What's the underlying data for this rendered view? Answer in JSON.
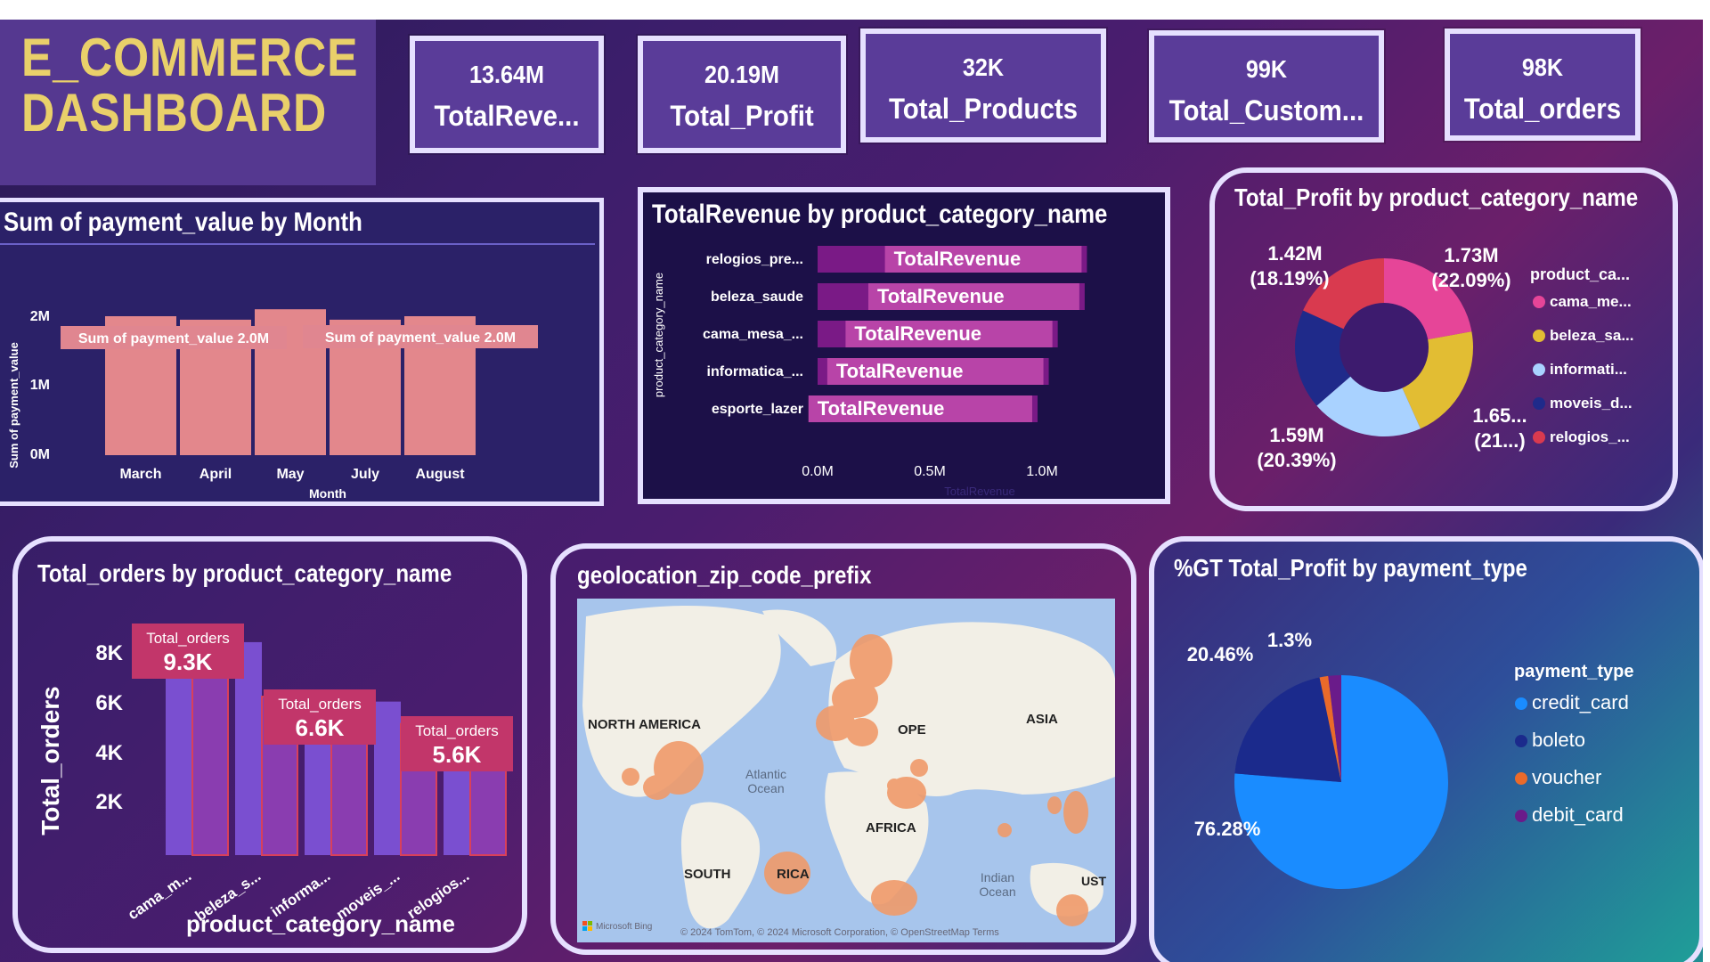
{
  "header": {
    "title_line1": "E_COMMERCE",
    "title_line2": "DASHBOARD"
  },
  "kpis": [
    {
      "value": "13.64M",
      "label": "TotalReve..."
    },
    {
      "value": "20.19M",
      "label": "Total_Profit"
    },
    {
      "value": "32K",
      "label": "Total_Products"
    },
    {
      "value": "99K",
      "label": "Total_Custom..."
    },
    {
      "value": "98K",
      "label": "Total_orders"
    }
  ],
  "payment_chart": {
    "title": "Sum of payment_value by Month",
    "ylabel": "Sum of payment_value",
    "xlabel": "Month",
    "yticks": [
      "0M",
      "1M",
      "2M"
    ],
    "annotation_left": "Sum of payment_value 2.0M",
    "annotation_right": "Sum of payment_value 2.0M"
  },
  "revenue_chart": {
    "title": "TotalRevenue by product_category_name",
    "ylabel": "product_category_name",
    "xlabel": "TotalRevenue",
    "bar_label": "TotalRevenue",
    "xticks": [
      "0.0M",
      "0.5M",
      "1.0M"
    ]
  },
  "profit_donut": {
    "title": "Total_Profit by product_category_name",
    "legend_title": "product_ca...",
    "legend_items": [
      "cama_me...",
      "beleza_sa...",
      "informati...",
      "moveis_d...",
      "relogios_..."
    ],
    "labels": {
      "a_value": "1.42M",
      "a_pct": "(18.19%)",
      "b_value": "1.73M",
      "b_pct": "(22.09%)",
      "c_value": "1.65...",
      "c_pct": "(21...)",
      "d_value": "1.59M",
      "d_pct": "(20.39%)"
    }
  },
  "orders_chart": {
    "title": "Total_orders by product_category_name",
    "ylabel": "Total_orders",
    "xlabel": "product_category_name",
    "yticks": [
      "2K",
      "4K",
      "6K",
      "8K"
    ],
    "xticks": [
      "cama_m...",
      "beleza_s...",
      "informa...",
      "moveis_...",
      "relogios..."
    ],
    "callout_label": "Total_orders",
    "callouts": [
      "9.3K",
      "6.6K",
      "5.6K"
    ]
  },
  "map": {
    "title": "geolocation_zip_code_prefix",
    "labels": {
      "north_america": "NORTH AMERICA",
      "europe": "OPE",
      "asia": "ASIA",
      "africa": "AFRICA",
      "south_america_left": "SOUTH",
      "south_america_right": "RICA",
      "atlantic_1": "Atlantic",
      "atlantic_2": "Ocean",
      "indian_1": "Indian",
      "indian_2": "Ocean",
      "australia": "UST"
    },
    "brand": "Microsoft Bing",
    "attribution": "© 2024 TomTom, © 2024 Microsoft Corporation, © OpenStreetMap  Terms"
  },
  "payment_pie": {
    "title": "%GT Total_Profit by payment_type",
    "legend_title": "payment_type",
    "legend_items": [
      "credit_card",
      "boleto",
      "voucher",
      "debit_card"
    ],
    "labels": {
      "credit": "76.28%",
      "boleto": "20.46%",
      "voucher": "1.3%"
    }
  },
  "colors": {
    "title_yellow": "#e9d06a",
    "bar_salmon": "#e3878c",
    "bar_magenta": "#b844a8",
    "donut_pink": "#e64598",
    "donut_yellow": "#e2bd33",
    "donut_lightblue": "#a9d2ff",
    "donut_navy": "#1f2a8a",
    "donut_red": "#d93a4f",
    "pie_blue": "#1a8cff",
    "pie_navy": "#1b2a8c",
    "pie_orange": "#ea6a2a",
    "pie_purple": "#6a1b8a"
  },
  "chart_data": [
    {
      "type": "bar",
      "title": "Sum of payment_value by Month",
      "xlabel": "Month",
      "ylabel": "Sum of payment_value",
      "categories": [
        "March",
        "April",
        "May",
        "July",
        "August"
      ],
      "values": [
        2.0,
        1.95,
        2.1,
        1.95,
        2.0
      ],
      "unit": "M",
      "ylim": [
        0,
        2.4
      ]
    },
    {
      "type": "bar",
      "orientation": "horizontal",
      "title": "TotalRevenue by product_category_name",
      "xlabel": "TotalRevenue",
      "ylabel": "product_category_name",
      "categories": [
        "relogios_pre...",
        "beleza_saude",
        "cama_mesa_...",
        "informatica_...",
        "esporte_lazer"
      ],
      "values": [
        1.2,
        1.19,
        1.07,
        1.03,
        0.98
      ],
      "unit": "M",
      "xlim": [
        0,
        1.2
      ]
    },
    {
      "type": "pie",
      "donut": true,
      "title": "Total_Profit by product_category_name",
      "legend_title": "product_ca...",
      "categories": [
        "cama_me...",
        "beleza_sa...",
        "informati...",
        "moveis_d...",
        "relogios_..."
      ],
      "values": [
        1.73,
        1.65,
        1.59,
        1.42,
        1.42
      ],
      "unit": "M"
    },
    {
      "type": "bar",
      "title": "Total_orders by product_category_name",
      "xlabel": "product_category_name",
      "ylabel": "Total_orders",
      "categories": [
        "cama_m...",
        "beleza_s...",
        "informa...",
        "moveis_...",
        "relogios..."
      ],
      "series": [
        {
          "values": [
            9.3,
            8.6,
            6.6,
            6.2,
            5.6
          ]
        },
        {
          "values": [
            8.2,
            6.4,
            5.8,
            5.3,
            5.0
          ]
        }
      ],
      "unit": "K",
      "ylim": [
        0,
        9.5
      ]
    },
    {
      "type": "pie",
      "title": "%GT Total_Profit by payment_type",
      "legend_title": "payment_type",
      "categories": [
        "credit_card",
        "boleto",
        "voucher",
        "debit_card"
      ],
      "values": [
        76.28,
        20.46,
        1.3,
        1.96
      ],
      "unit": "%"
    }
  ]
}
